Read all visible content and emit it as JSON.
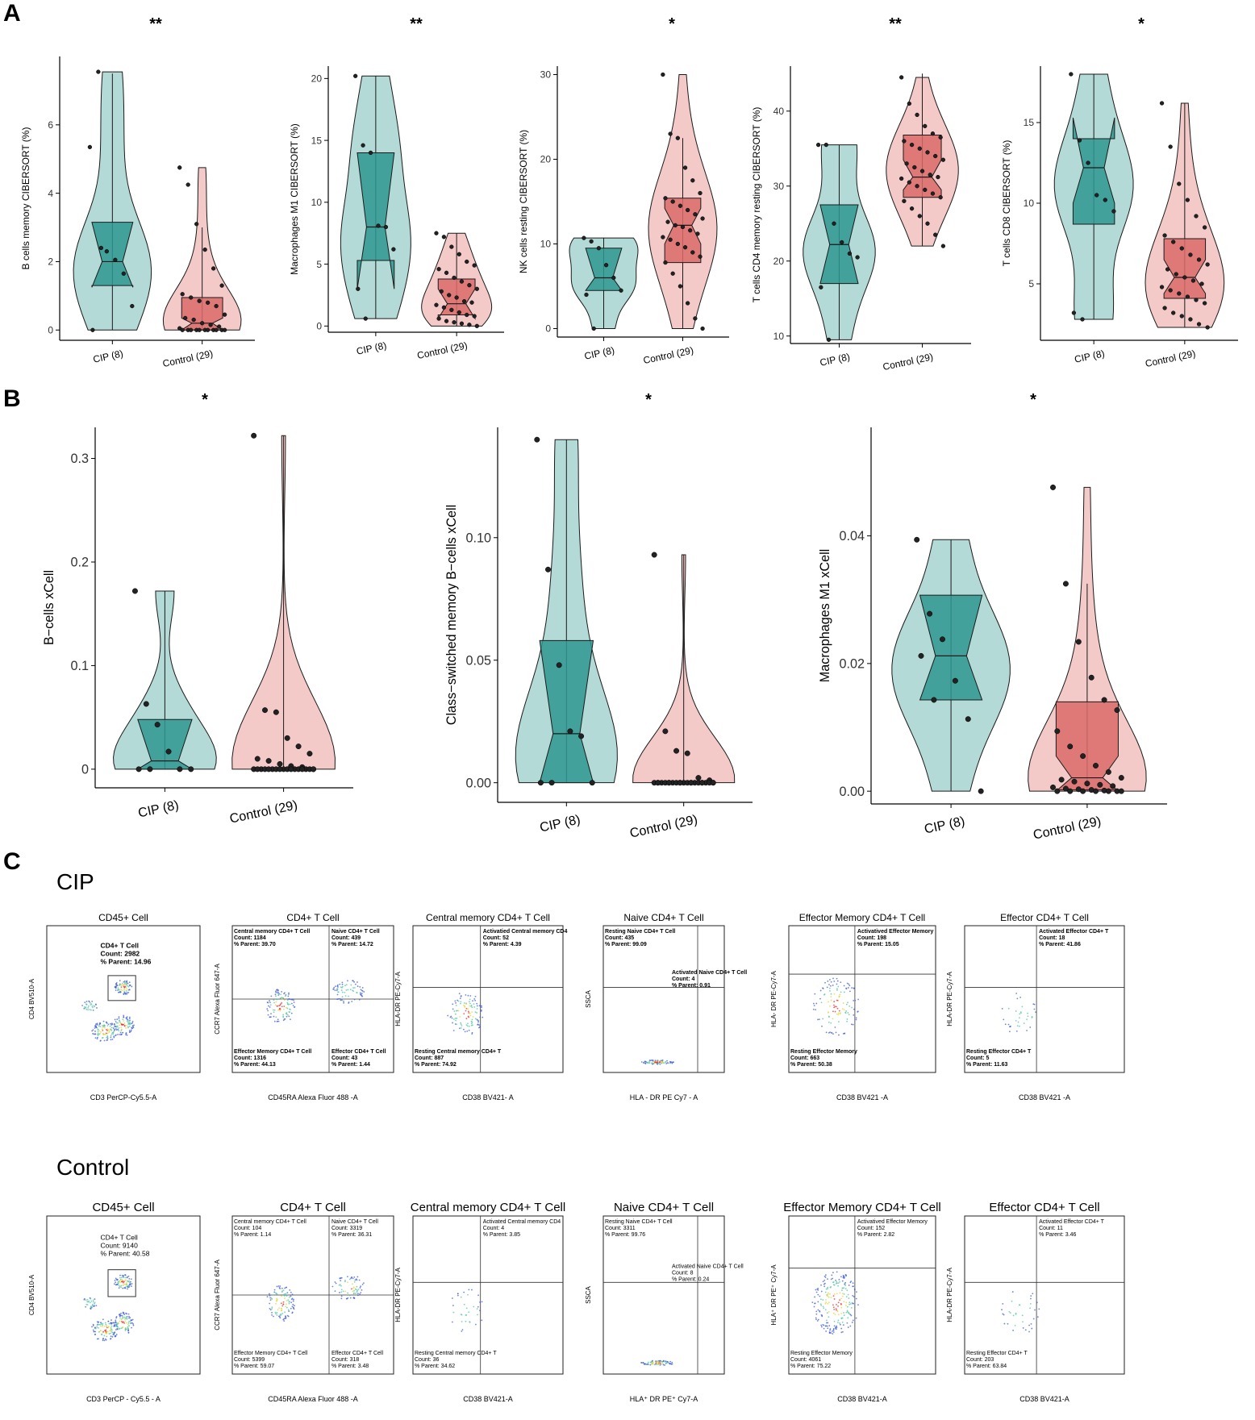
{
  "panels": {
    "a": "A",
    "b": "B",
    "c": "C"
  },
  "groups": {
    "cip": "CIP",
    "control": "Control"
  },
  "colors": {
    "cip_fill": "#2e9690",
    "cip_light": "#a6d3cf",
    "control_fill": "#d96b6a",
    "control_light": "#f2c1c0",
    "outline": "#1a1a1a"
  },
  "chart_data": [
    {
      "type": "box+violin",
      "ylabel": "B cells memory CIBERSORT (%)",
      "significance": "**",
      "categories": [
        "CIP (8)",
        "Control (29)"
      ],
      "yticks": [
        0,
        2,
        4,
        6
      ],
      "ylim": [
        -0.3,
        8.0
      ],
      "boxes": [
        {
          "q1": 1.3,
          "median": 2.0,
          "q3": 3.15,
          "notch_lo": 1.25,
          "notch_hi": 3.15,
          "whisker_lo": 0.0,
          "whisker_hi": 7.5
        },
        {
          "q1": 0.0,
          "median": 0.2,
          "q3": 0.95,
          "notch_lo": 0.0,
          "notch_hi": 0.35,
          "whisker_lo": 0.0,
          "whisker_hi": 3.0
        }
      ],
      "points": [
        [
          5.35,
          7.55,
          2.3,
          2.05,
          1.65,
          0.7,
          0.0,
          2.4
        ],
        [
          4.75,
          4.25,
          3.1,
          2.35,
          1.8,
          1.3,
          1.05,
          0.95,
          0.85,
          0.8,
          0.7,
          0.45,
          0.35,
          0.3,
          0.2,
          0.15,
          0.1,
          0.05,
          0.0,
          0.0,
          0.0,
          0.0,
          0.0,
          0.0,
          0.0,
          0.0,
          0.0,
          0.0,
          0.0
        ]
      ]
    },
    {
      "type": "box+violin",
      "ylabel": "Macrophages M1 CIBERSORT (%)",
      "significance": "**",
      "categories": [
        "CIP (8)",
        "Control (29)"
      ],
      "yticks": [
        0,
        5,
        10,
        15,
        20
      ],
      "ylim": [
        -0.5,
        21.0
      ],
      "boxes": [
        {
          "q1": 5.3,
          "median": 8.0,
          "q3": 14.0,
          "notch_lo": 3.0,
          "notch_hi": 14.0,
          "whisker_lo": 0.6,
          "whisker_hi": 20.2
        },
        {
          "q1": 0.9,
          "median": 1.8,
          "q3": 3.8,
          "notch_lo": 0.6,
          "notch_hi": 3.0,
          "whisker_lo": 0.0,
          "whisker_hi": 7.5
        }
      ],
      "points": [
        [
          20.2,
          14.6,
          14.0,
          8.1,
          8.0,
          6.2,
          3.0,
          0.6
        ],
        [
          7.5,
          7.2,
          6.4,
          5.8,
          5.2,
          4.9,
          4.6,
          4.3,
          3.9,
          3.6,
          3.3,
          3.0,
          2.8,
          2.5,
          2.3,
          2.0,
          1.9,
          1.7,
          1.5,
          1.3,
          1.1,
          0.9,
          0.8,
          0.6,
          0.4,
          0.3,
          0.2,
          0.1,
          0.0
        ]
      ]
    },
    {
      "type": "box+violin",
      "ylabel": "NK cells resting CIBERSORT (%)",
      "significance": "*",
      "categories": [
        "CIP (8)",
        "Control (29)"
      ],
      "yticks": [
        0,
        10,
        20,
        30
      ],
      "ylim": [
        -1.0,
        31.0
      ],
      "boxes": [
        {
          "q1": 4.5,
          "median": 6.0,
          "q3": 9.5,
          "notch_lo": 4.5,
          "notch_hi": 9.5,
          "whisker_lo": 0.0,
          "whisker_hi": 10.7
        },
        {
          "q1": 7.8,
          "median": 12.2,
          "q3": 15.4,
          "notch_lo": 10.0,
          "notch_hi": 14.2,
          "whisker_lo": 0.0,
          "whisker_hi": 22.5
        }
      ],
      "points": [
        [
          10.7,
          10.3,
          9.5,
          7.5,
          6.0,
          4.5,
          4.0,
          0.0
        ],
        [
          30.0,
          23.0,
          22.5,
          19.0,
          17.5,
          16.0,
          15.4,
          15.0,
          14.5,
          14.0,
          13.5,
          13.0,
          12.6,
          12.2,
          12.0,
          11.6,
          11.2,
          10.8,
          10.5,
          10.0,
          9.6,
          9.0,
          8.5,
          7.8,
          6.5,
          5.0,
          3.0,
          1.2,
          0.0
        ]
      ]
    },
    {
      "type": "box+violin",
      "ylabel": "T cells CD4 memory resting CIBERSORT (%)",
      "significance": "**",
      "categories": [
        "CIP (8)",
        "Control (29)"
      ],
      "yticks": [
        10,
        20,
        30,
        40
      ],
      "ylim": [
        9.0,
        46.0
      ],
      "boxes": [
        {
          "q1": 17.0,
          "median": 22.2,
          "q3": 27.5,
          "notch_lo": 17.0,
          "notch_hi": 27.5,
          "whisker_lo": 9.5,
          "whisker_hi": 35.5
        },
        {
          "q1": 28.5,
          "median": 31.2,
          "q3": 36.8,
          "notch_lo": 29.5,
          "notch_hi": 33.5,
          "whisker_lo": 22.0,
          "whisker_hi": 45.0
        }
      ],
      "points": [
        [
          35.5,
          35.5,
          25.0,
          22.5,
          21.0,
          20.5,
          16.5,
          9.5
        ],
        [
          44.5,
          41.0,
          39.5,
          38.0,
          37.0,
          36.5,
          36.0,
          35.5,
          35.0,
          34.5,
          34.0,
          33.5,
          33.0,
          32.5,
          32.0,
          31.5,
          31.2,
          31.0,
          30.5,
          30.0,
          29.5,
          29.0,
          28.5,
          28.0,
          27.0,
          26.0,
          25.0,
          23.5,
          22.0
        ]
      ]
    },
    {
      "type": "box+violin",
      "ylabel": "T cells CD8 CIBERSORT (%)",
      "significance": "*",
      "categories": [
        "CIP (8)",
        "Control (29)"
      ],
      "yticks": [
        5,
        10,
        15
      ],
      "ylim": [
        1.5,
        18.5
      ],
      "boxes": [
        {
          "q1": 8.7,
          "median": 12.2,
          "q3": 14.0,
          "notch_lo": 10.0,
          "notch_hi": 15.3,
          "whisker_lo": 2.8,
          "whisker_hi": 18.0
        },
        {
          "q1": 4.1,
          "median": 5.4,
          "q3": 7.8,
          "notch_lo": 4.4,
          "notch_hi": 6.5,
          "whisker_lo": 2.3,
          "whisker_hi": 16.2
        }
      ],
      "points": [
        [
          18.0,
          13.9,
          12.5,
          10.5,
          10.2,
          9.5,
          3.2,
          2.8
        ],
        [
          16.2,
          13.5,
          11.2,
          10.2,
          9.2,
          8.5,
          8.0,
          7.6,
          7.2,
          6.8,
          6.5,
          6.2,
          5.9,
          5.6,
          5.4,
          5.2,
          5.0,
          4.8,
          4.6,
          4.4,
          4.2,
          4.0,
          3.8,
          3.5,
          3.2,
          3.0,
          2.8,
          2.5,
          2.3
        ]
      ]
    },
    {
      "type": "box+violin",
      "ylabel": "B−cells xCell",
      "significance": "*",
      "categories": [
        "CIP (8)",
        "Control (29)"
      ],
      "yticks": [
        0.0,
        0.1,
        0.2,
        0.3
      ],
      "ylim": [
        -0.018,
        0.33
      ],
      "boxes": [
        {
          "q1": 0.0,
          "median": 0.008,
          "q3": 0.048,
          "notch_lo": 0.0,
          "notch_hi": 0.048,
          "whisker_lo": 0.0,
          "whisker_hi": 0.172
        },
        {
          "q1": 0.0,
          "median": 0.0,
          "q3": 0.0,
          "notch_lo": 0.0,
          "notch_hi": 0.0,
          "whisker_lo": 0.0,
          "whisker_hi": 0.322
        }
      ],
      "points": [
        [
          0.172,
          0.063,
          0.043,
          0.017,
          0.0,
          0.0,
          0.0,
          0.0
        ],
        [
          0.322,
          0.057,
          0.055,
          0.03,
          0.022,
          0.015,
          0.01,
          0.008,
          0.005,
          0.003,
          0.002,
          0.0,
          0.0,
          0.0,
          0.0,
          0.0,
          0.0,
          0.0,
          0.0,
          0.0,
          0.0,
          0.0,
          0.0,
          0.0,
          0.0,
          0.0,
          0.0,
          0.0,
          0.0
        ]
      ]
    },
    {
      "type": "box+violin",
      "ylabel": "Class−switched memory B−cells xCell",
      "significance": "*",
      "categories": [
        "CIP (8)",
        "Control (29)"
      ],
      "yticks": [
        0.0,
        0.05,
        0.1
      ],
      "ylim": [
        -0.008,
        0.145
      ],
      "yticklabels": [
        "0.00",
        "0.05",
        "0.10"
      ],
      "boxes": [
        {
          "q1": 0.0,
          "median": 0.02,
          "q3": 0.058,
          "notch_lo": 0.0,
          "notch_hi": 0.058,
          "whisker_lo": 0.0,
          "whisker_hi": 0.14
        },
        {
          "q1": 0.0,
          "median": 0.0,
          "q3": 0.0,
          "notch_lo": 0.0,
          "notch_hi": 0.0,
          "whisker_lo": 0.0,
          "whisker_hi": 0.093
        }
      ],
      "points": [
        [
          0.14,
          0.087,
          0.048,
          0.021,
          0.019,
          0.0,
          0.0,
          0.0
        ],
        [
          0.093,
          0.021,
          0.013,
          0.012,
          0.002,
          0.001,
          0.0,
          0.0,
          0.0,
          0.0,
          0.0,
          0.0,
          0.0,
          0.0,
          0.0,
          0.0,
          0.0,
          0.0,
          0.0,
          0.0,
          0.0,
          0.0,
          0.0,
          0.0,
          0.0,
          0.0,
          0.0,
          0.0,
          0.0
        ]
      ]
    },
    {
      "type": "box+violin",
      "ylabel": "Macrophages M1 xCell",
      "significance": "*",
      "categories": [
        "CIP (8)",
        "Control (29)"
      ],
      "yticks": [
        0.0,
        0.02,
        0.04
      ],
      "ylim": [
        -0.002,
        0.057
      ],
      "yticklabels": [
        "0.00",
        "0.02",
        "0.04"
      ],
      "boxes": [
        {
          "q1": 0.0143,
          "median": 0.0212,
          "q3": 0.0307,
          "notch_lo": 0.0143,
          "notch_hi": 0.0307,
          "whisker_lo": 0.0,
          "whisker_hi": 0.0394
        },
        {
          "q1": 0.0002,
          "median": 0.0021,
          "q3": 0.014,
          "notch_lo": 0.0,
          "notch_hi": 0.0055,
          "whisker_lo": 0.0,
          "whisker_hi": 0.0325
        }
      ],
      "points": [
        [
          0.0394,
          0.0278,
          0.0238,
          0.0173,
          0.0113,
          0.0,
          0.0212,
          0.0143
        ],
        [
          0.0476,
          0.0325,
          0.0234,
          0.0178,
          0.0143,
          0.0127,
          0.0094,
          0.007,
          0.0055,
          0.004,
          0.003,
          0.0021,
          0.0018,
          0.0015,
          0.0012,
          0.001,
          0.0008,
          0.0006,
          0.0004,
          0.0003,
          0.0002,
          0.0001,
          0.0,
          0.0,
          0.0,
          0.0,
          0.0,
          0.0,
          0.0
        ]
      ]
    }
  ],
  "flow": {
    "cip": [
      {
        "title": "CD45+ Cell",
        "xlabel": "CD3 PerCP-Cy5.5-A",
        "ylabel": "CD4 BV510-A",
        "gates": [
          {
            "name": "CD4+ T Cell",
            "count": "Count: 2982",
            "parent": "% Parent: 14.96"
          }
        ]
      },
      {
        "title": "CD4+ T Cell",
        "xlabel": "CD45RA Alexa Fluor 488 -A",
        "ylabel": "CCR7 Alexa Fluor 647-A",
        "gates": [
          {
            "name": "Central memory CD4+ T Cell",
            "count": "Count: 1184",
            "parent": "% Parent: 39.70"
          },
          {
            "name": "Naive CD4+ T Cell",
            "count": "Count: 439",
            "parent": "% Parent: 14.72"
          },
          {
            "name": "Effector Memory CD4+ T Cell",
            "count": "Count: 1316",
            "parent": "% Parent: 44.13"
          },
          {
            "name": "Effector CD4+ T Cell",
            "count": "Count: 43",
            "parent": "% Parent: 1.44"
          }
        ]
      },
      {
        "title": "Central memory CD4+ T Cell",
        "xlabel": "CD38 BV421- A",
        "ylabel": "HLA-DR PE-Cy7-A",
        "gates": [
          {
            "name": "Activatied Central memory CD4",
            "count": "Count: 52",
            "parent": "% Parent: 4.39"
          },
          {
            "name": "Resting Central memory CD4+ T",
            "count": "Count: 887",
            "parent": "% Parent: 74.92"
          }
        ]
      },
      {
        "title": "Naive CD4+ T Cell",
        "xlabel": "HLA - DR PE Cy7 - A",
        "ylabel": "SSCA",
        "gates": [
          {
            "name": "Resting Naive CD4+ T Cell",
            "count": "Count: 435",
            "parent": "% Parent: 99.09"
          },
          {
            "name": "Activated Naive CD4+ T Cell",
            "count": "Count: 4",
            "parent": "% Parent: 0.91"
          }
        ]
      },
      {
        "title": "Effector Memory CD4+ T Cell",
        "xlabel": "CD38 BV421 -A",
        "ylabel": "HLA- DR PE-Cy7-A",
        "gates": [
          {
            "name": "Activatived Effector Memory",
            "count": "Count: 198",
            "parent": "% Parent: 15.05"
          },
          {
            "name": "Resting Effector Memory",
            "count": "Count: 663",
            "parent": "% Parent: 50.38"
          }
        ]
      },
      {
        "title": "Effector CD4+ T Cell",
        "xlabel": "CD38 BV421 -A",
        "ylabel": "HLA-DR PE-Cy7-A",
        "gates": [
          {
            "name": "Activated Effector CD4+ T",
            "count": "Count: 18",
            "parent": "% Parent: 41.86"
          },
          {
            "name": "Resting Effector CD4+ T",
            "count": "Count: 5",
            "parent": "% Parent: 11.63"
          }
        ]
      }
    ],
    "control": [
      {
        "title": "CD45+ Cell",
        "xlabel": "CD3 PerCP - Cy5.5 - A",
        "ylabel": "CD4 BV510-A",
        "gates": [
          {
            "name": "CD4+ T Cell",
            "count": "Count:  9140",
            "parent": "% Parent: 40.58"
          }
        ]
      },
      {
        "title": "CD4+ T Cell",
        "xlabel": "CD45RA Alexa Fluor 488 -A",
        "ylabel": "CCR7 Alexa Fluor 647-A",
        "gates": [
          {
            "name": "Central memory CD4+ T Cell",
            "count": "Count: 104",
            "parent": "% Parent: 1.14"
          },
          {
            "name": "Naive CD4+ T Cell",
            "count": "Count: 3319",
            "parent": "% Parent: 36.31"
          },
          {
            "name": "Effector Memory CD4+ T Cell",
            "count": "Count: 5399",
            "parent": "% Parent: 59.07"
          },
          {
            "name": "Effector CD4+ T Cell",
            "count": "Count: 318",
            "parent": "% Parent: 3.48"
          }
        ]
      },
      {
        "title": "Central memory CD4+ T Cell",
        "xlabel": "CD38 BV421-A",
        "ylabel": "HLA-DR PE-Cy7-A",
        "gates": [
          {
            "name": "Activated Central memory CD4",
            "count": "Count: 4",
            "parent": "% Parent: 3.85"
          },
          {
            "name": "Resting Central memory CD4+ T",
            "count": "Count: 36",
            "parent": "% Parent: 34.62"
          }
        ]
      },
      {
        "title": "Naive CD4+ T Cell",
        "xlabel": "HLA⁺ DR PE⁺ Cy7-A",
        "ylabel": "SSCA",
        "gates": [
          {
            "name": "Resting Naive CD4+ T Cell",
            "count": "Count: 3311",
            "parent": "% Parent: 99.76"
          },
          {
            "name": "Activated Naive CD4+ T Cell",
            "count": "Count: 8",
            "parent": "% Parent: 0.24"
          }
        ]
      },
      {
        "title": "Effector Memory CD4+ T Cell",
        "xlabel": "CD38 BV421-A",
        "ylabel": "HLA⁺ DR PE⁺ Cy7-A",
        "gates": [
          {
            "name": "Activatived Effector Memory",
            "count": "Count: 152",
            "parent": "% Parent: 2.82"
          },
          {
            "name": "Resting Effector Memory",
            "count": "Count: 4061",
            "parent": "% Parent: 75.22"
          }
        ]
      },
      {
        "title": "Effector CD4+ T Cell",
        "xlabel": "CD38 BV421-A",
        "ylabel": "HLA-DR PE-Cy7-A",
        "gates": [
          {
            "name": "Activated Effector CD4+ T",
            "count": "Count: 11",
            "parent": "% Parent: 3.46"
          },
          {
            "name": "Resting Effector CD4+ T",
            "count": "Count: 203",
            "parent": "% Parent: 63.84"
          }
        ]
      }
    ]
  }
}
